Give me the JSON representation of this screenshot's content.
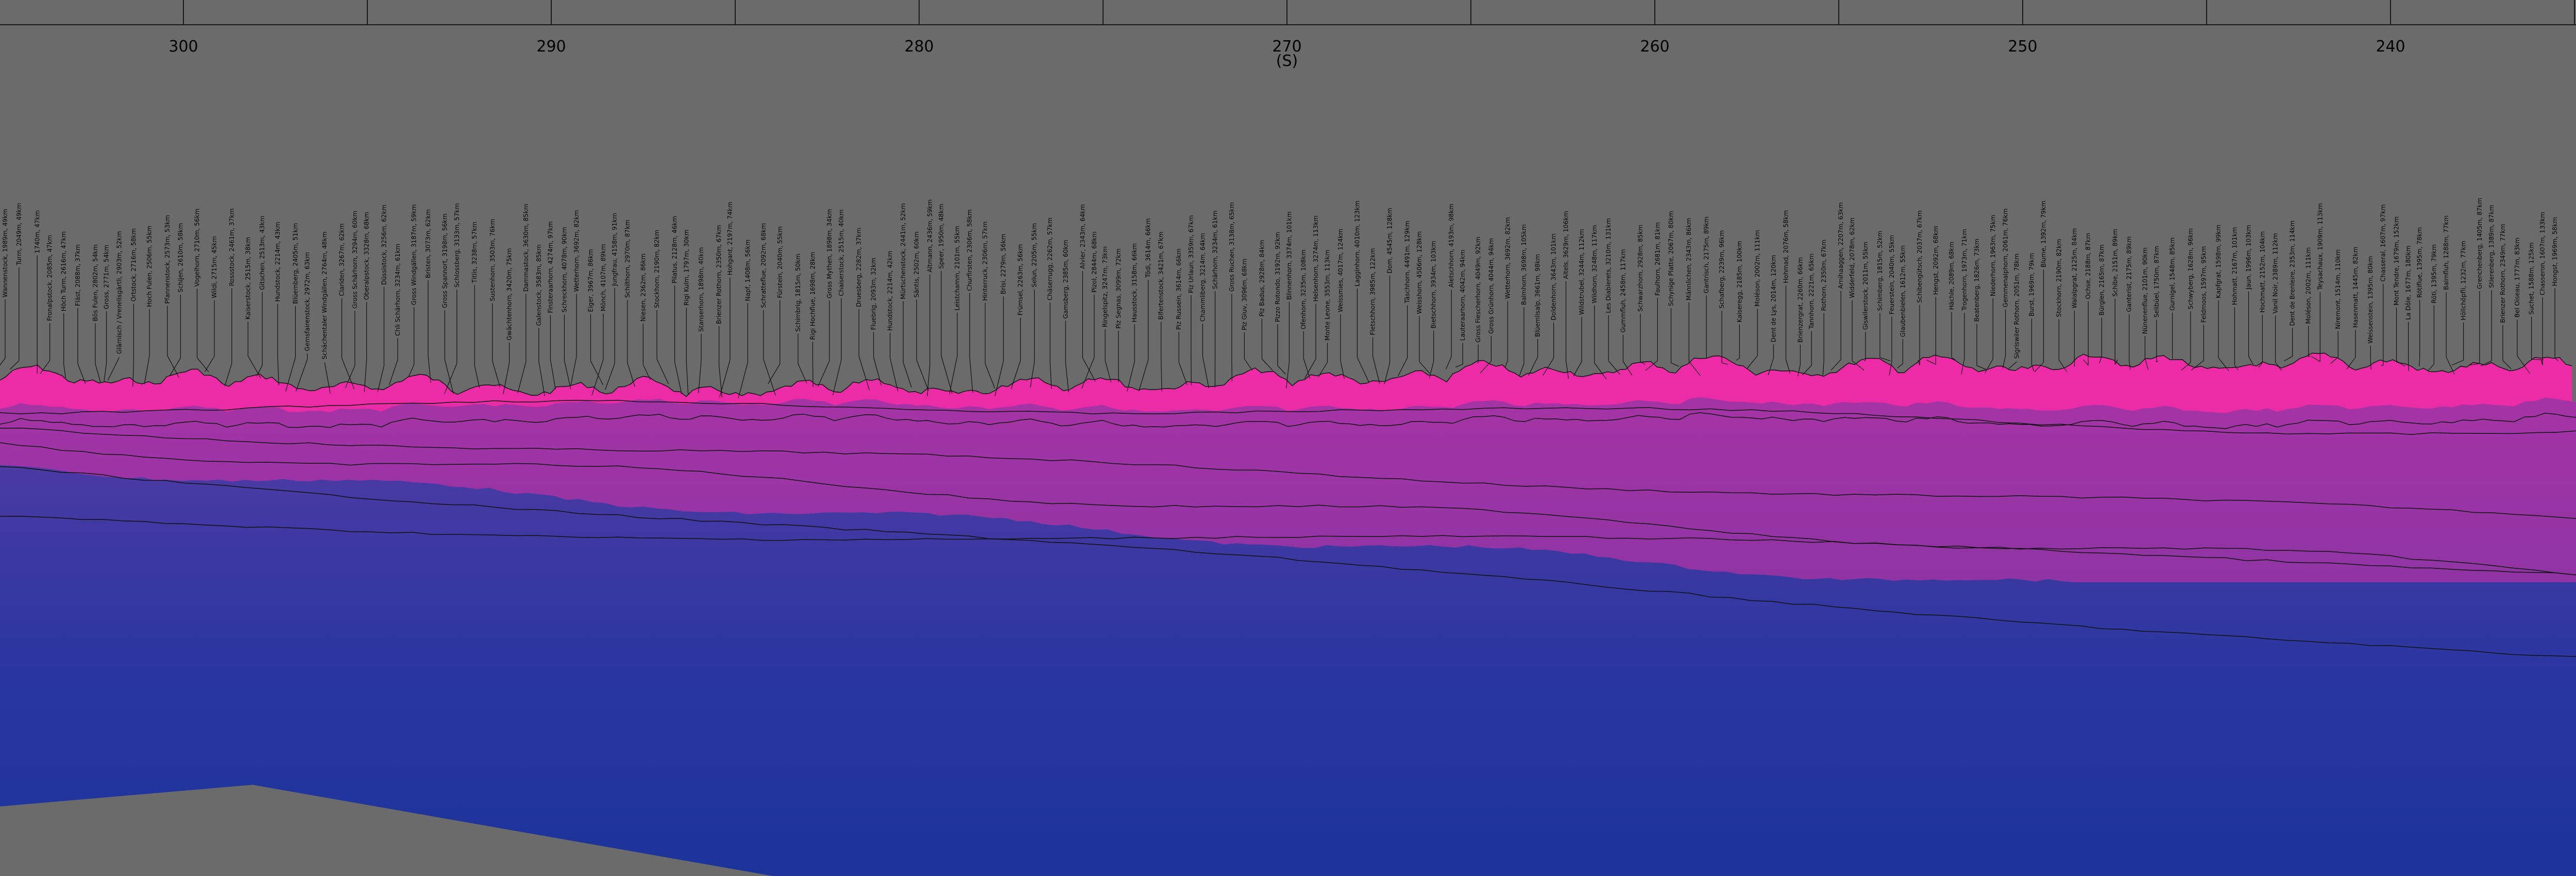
{
  "axis": {
    "ticks": [
      {
        "label": "300",
        "deg": 300
      },
      {
        "label": "290",
        "deg": 290
      },
      {
        "label": "280",
        "deg": 280
      },
      {
        "label": "270",
        "deg": 270
      },
      {
        "label": "260",
        "deg": 260
      },
      {
        "label": "250",
        "deg": 250
      },
      {
        "label": "240",
        "deg": 240
      }
    ],
    "direction": "(S)"
  },
  "colors": {
    "background": "#6b6b6b",
    "far_ridge": "#e22ca2",
    "mid_ridge": "#9a35a8",
    "near": "#1e35a0"
  },
  "peaks": [
    "Wannenstock, 1989m, 49km",
    "Turm, 2049m, 49km",
    "1740m, 47km",
    "Fronalpstock, 2085m, 47km",
    "Höch Turm, 2616m, 47km",
    "Fläst, 2088m, 37km",
    "Bös Fulen, 2802m, 54km",
    "Gross, 2771m, 54km",
    "Glärnisch / Vrenelisgärtli, 2903m, 52km",
    "Ortstock, 2716m, 58km",
    "Hoch Fulen, 2506m, 55km",
    "Pfannenstock, 2573m, 53km",
    "Schijen, 2610m, 58km",
    "Vogelhorn, 2710m, 56km",
    "Wildi, 2715m, 45km",
    "Rossstock, 2461m, 37km",
    "Kaiserstock, 2515m, 38km",
    "Gitschen, 2513m, 43km",
    "Hundstock, 2214m, 43km",
    "Blüemberg, 2405m, 51km",
    "Gemsfairenstock, 2972m, 63km",
    "Schächentaler Windgällen, 2764m, 48km",
    "Clariden, 3267m, 62km",
    "Gross Schärhorn, 3294m, 60km",
    "Oberalpstock, 3328m, 68km",
    "Düssistock, 3256m, 62km",
    "Chli Schärhorn, 3234m, 61km",
    "Gross Windgällen, 3187m, 59km",
    "Bristen, 3073m, 62km",
    "Gross Spannort, 3198m, 56km",
    "Schlossberg, 3133m, 57km",
    "Titlis, 3238m, 57km",
    "Sustenhorn, 3503m, 76km",
    "Gwächtenhorn, 3420m, 75km",
    "Dammastock, 3630m, 85km",
    "Galenstock, 3583m, 85km",
    "Finsteraarhorn, 4274m, 97km",
    "Schreckhorn, 4078m, 90km",
    "Wetterhorn, 3692m, 82km",
    "Eiger, 3967m, 86km",
    "Mönch, 4107m, 89km",
    "Jungfrau, 4158m, 91km",
    "Schilthorn, 2970m, 87km",
    "Niesen, 2362m, 86km",
    "Stockhorn, 2190m, 82km",
    "Pilatus, 2128m, 46km",
    "Rigi Kulm, 1797m, 30km",
    "Stanserhorn, 1898m, 40km",
    "Brienzer Rothorn, 2350m, 67km",
    "Hohgant, 2197m, 74km",
    "Napf, 1408m, 56km",
    "Schratteflue, 2092m, 68km",
    "Fürstein, 2040m, 55km",
    "Schimbrig, 1815m, 50km",
    "Rigi Hochflue, 1698m, 28km",
    "Gross Mythen, 1898m, 34km",
    "Chaiserstock, 2515m, 40km",
    "Druesberg, 2282m, 37km",
    "Fluebrig, 2093m, 32km",
    "Hundstock, 2214m, 42km",
    "Mürtschenstock, 2441m, 52km",
    "Säntis, 2502m, 60km",
    "Altmann, 2436m, 59km",
    "Speer, 1950m, 48km",
    "Leistchamm, 2101m, 55km",
    "Churfirsten, 2306m, 58km",
    "Hinterruck, 2306m, 57km",
    "Brisi, 2279m, 56km",
    "Frümsel, 2263m, 56km",
    "Selun, 2205m, 55km",
    "Chäserrugg, 2262m, 57km",
    "Gamsberg, 2385m, 60km",
    "Alvier, 2343m, 64km",
    "Pizol, 2844m, 68km",
    "Ringelspitz, 3247m, 73km",
    "Piz Segnas, 3099m, 72km",
    "Hausstock, 3158m, 66km",
    "Tödi, 3614m, 66km",
    "Bifertenstock, 3421m, 67km",
    "Piz Russein, 3614m, 66km",
    "Piz Urlaun, 3359m, 67km",
    "Chammliberg, 3214m, 64km",
    "Schärhorn, 3234m, 61km",
    "Gross Ruchen, 3138m, 65km",
    "Piz Giuv, 3096m, 68km",
    "Piz Badus, 2928m, 84km",
    "Pizzo Rotondo, 3192m, 92km",
    "Blinnenhorn, 3374m, 101km",
    "Ofenhorn, 3235m, 108km",
    "Helsenhorn, 3274m, 113km",
    "Monte Leone, 3553m, 113km",
    "Weissmies, 4017m, 124km",
    "Lagginhorn, 4010m, 123km",
    "Fletschhorn, 3985m, 122km",
    "Dom, 4545m, 128km",
    "Täschhorn, 4491m, 129km",
    "Weisshorn, 4506m, 128km",
    "Bietschhorn, 3934m, 103km",
    "Aletschhorn, 4193m, 98km",
    "Lauteraarhorn, 4042m, 94km",
    "Gross Fiescherhorn, 4049m, 92km",
    "Gross Grünhorn, 4044m, 94km",
    "Wetterhorn, 3692m, 82km",
    "Balmhorn, 3698m, 105km",
    "Blüemlisalp, 3661m, 98km",
    "Doldenhorn, 3643m, 101km",
    "Altels, 3629m, 106km",
    "Wildstrubel, 3244m, 112km",
    "Wildhorn, 3248m, 117km",
    "Les Diablerets, 3210m, 131km",
    "Gummfluh, 2458m, 117km",
    "Schwarzhorn, 2928m, 85km",
    "Faulhorn, 2681m, 81km",
    "Schynige Platte, 2067m, 80km",
    "Männlichen, 2343m, 86km",
    "Gantrisch, 2175m, 89km",
    "Schafberg, 2239m, 96km",
    "Kaiseregg, 2185m, 100km",
    "Moléson, 2002m, 111km",
    "Dent de Lys, 2014m, 120km",
    "Hohmad, 2076m, 58km",
    "Brienzergrat, 2260m, 66km",
    "Tannhorn, 2221m, 65km",
    "Rothorn, 2350m, 67km",
    "Arnihaaggen, 2207m, 63km",
    "Widderfeld, 2078m, 62km",
    "Giswilerstock, 2011m, 55km",
    "Schimberg, 1815m, 52km",
    "Feuerstein, 2040m, 55km",
    "Glaubenbielen, 1612m, 55km",
    "Schibengütsch, 2037m, 67km",
    "Hengst, 2092m, 68km",
    "Hächle, 2089m, 68km",
    "Trogenhorn, 1973m, 71km",
    "Beatenberg, 1826m, 73km",
    "Niederhorn, 1963m, 75km",
    "Gemmenalphorn, 2061m, 76km",
    "Sigriswiler Rothorn, 2051m, 78km",
    "Burst, 1969m, 79km",
    "Blume, 1392m, 79km",
    "Stockhorn, 2190m, 82km",
    "Walalpgrat, 2125m, 84km",
    "Ochse, 2188m, 87km",
    "Bürglen, 2165m, 87km",
    "Schibe, 2151m, 89km",
    "Ganterist, 2175m, 89km",
    "Nünenenflue, 2101m, 90km",
    "Selibüel, 1750m, 87km",
    "Gurnigel, 1548m, 85km",
    "Schwyberg, 1628m, 96km",
    "Feldmoos, 1597m, 95km",
    "Kapfgrat, 1598m, 99km",
    "Hohmatt, 2167m, 101km",
    "Jaun, 1996m, 103km",
    "Hochmatt, 2152m, 104km",
    "Vanil Noir, 2389m, 112km",
    "Dent de Brenleire, 2353m, 114km",
    "Moléson, 2002m, 111km",
    "Teysachaux, 1909m, 113km",
    "Niremont, 1514m, 110km",
    "Hasenmatt, 1445m, 82km",
    "Weissenstein, 1395m, 80km",
    "Chasseral, 1607m, 97km",
    "Mont Tendre, 1679m, 152km",
    "La Dôle, 1677m, 180km",
    "Rötiflue, 1395m, 78km",
    "Röti, 1395m, 79km",
    "Balmfluh, 1288m, 77km",
    "Höllchöpfli, 1232m, 77km",
    "Grenchenberg, 1405m, 87km",
    "Stierenberg, 1389m, 87km",
    "Brienzer Rothorn, 2349m, 77km",
    "Bel Oiseau, 1777m, 83km",
    "Suchet, 1588m, 125km",
    "Chasseron, 1607m, 133km",
    "Hongst, 1969m, 58km"
  ]
}
